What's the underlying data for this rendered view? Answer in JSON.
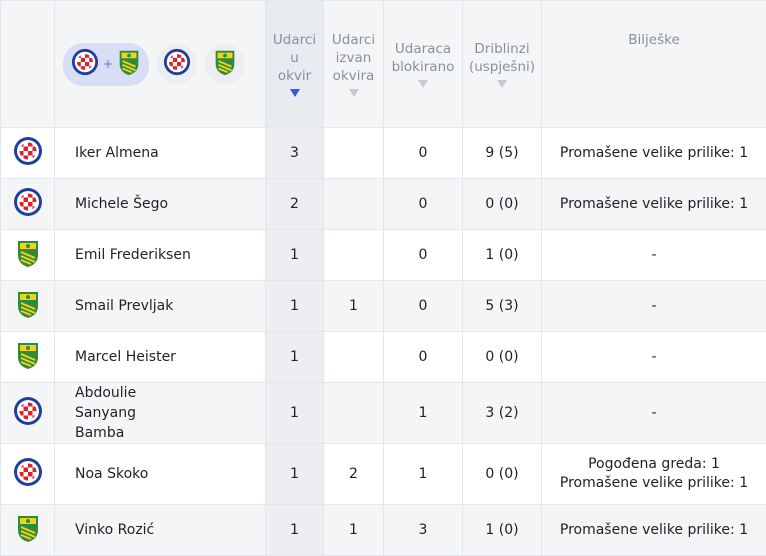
{
  "header": {
    "filter": {
      "selected": "both-teams",
      "icons": [
        "hajduk-crest-icon",
        "plus-icon",
        "istra-crest-icon"
      ]
    },
    "columns": [
      {
        "label": "Udarci u okvir",
        "sorted": true
      },
      {
        "label": "Udarci izvan okvira",
        "sorted": false
      },
      {
        "label": "Udaraca blokirano",
        "sorted": false
      },
      {
        "label": "Driblinzi (uspješni)",
        "sorted": false
      },
      {
        "label": "Bilješke"
      }
    ]
  },
  "colors": {
    "hajduk_red": "#d8232a",
    "hajduk_blue": "#1f3f9a",
    "istra_yellow": "#f2d21b",
    "istra_green": "#2f8a3a",
    "sort_active": "#3f51e0"
  },
  "rows": [
    {
      "team": "hajduk",
      "player": "Iker Almena",
      "on_target": "3",
      "off_target": "",
      "blocked": "0",
      "dribbles": "9 (5)",
      "notes": [
        "Promašene velike prilike: 1"
      ]
    },
    {
      "team": "hajduk",
      "player": "Michele Šego",
      "on_target": "2",
      "off_target": "",
      "blocked": "0",
      "dribbles": "0 (0)",
      "notes": [
        "Promašene velike prilike: 1"
      ]
    },
    {
      "team": "istra",
      "player": "Emil Frederiksen",
      "on_target": "1",
      "off_target": "",
      "blocked": "0",
      "dribbles": "1 (0)",
      "notes": [
        "-"
      ]
    },
    {
      "team": "istra",
      "player": "Smail Prevljak",
      "on_target": "1",
      "off_target": "1",
      "blocked": "0",
      "dribbles": "5 (3)",
      "notes": [
        "-"
      ]
    },
    {
      "team": "istra",
      "player": "Marcel Heister",
      "on_target": "1",
      "off_target": "",
      "blocked": "0",
      "dribbles": "0 (0)",
      "notes": [
        "-"
      ]
    },
    {
      "team": "hajduk",
      "player": "Abdoulie Sanyang Bamba",
      "on_target": "1",
      "off_target": "",
      "blocked": "1",
      "dribbles": "3 (2)",
      "notes": [
        "-"
      ]
    },
    {
      "team": "hajduk",
      "player": "Noa Skoko",
      "on_target": "1",
      "off_target": "2",
      "blocked": "1",
      "dribbles": "0 (0)",
      "notes": [
        "Pogođena greda: 1",
        "Promašene velike prilike: 1"
      ]
    },
    {
      "team": "istra",
      "player": "Vinko Rozić",
      "on_target": "1",
      "off_target": "1",
      "blocked": "3",
      "dribbles": "1 (0)",
      "notes": [
        "Promašene velike prilike: 1"
      ]
    }
  ]
}
